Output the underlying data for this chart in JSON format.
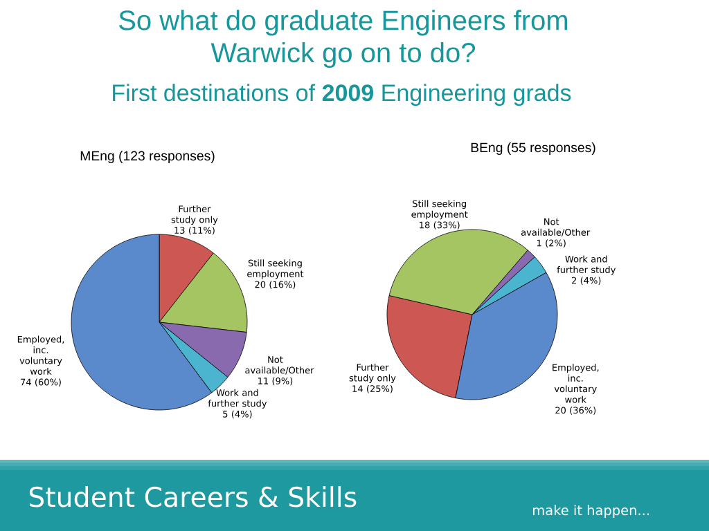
{
  "chart_data": [
    {
      "type": "other",
      "title": "So what do graduate Engineers from Warwick go on to do?",
      "subtitle": "First destinations of **2009** Engineering grads"
    },
    {
      "type": "pie",
      "title": "MEng (123  responses)",
      "categories": [
        "Further study only",
        "Still seeking employment",
        "Not available/Other",
        "Work and further study",
        "Employed, inc. voluntary work"
      ],
      "values": [
        13,
        20,
        11,
        5,
        74
      ],
      "colors": [
        "#cd5753",
        "#a5c562",
        "#8a6aaf",
        "#4bb5d0",
        "#5a8acb"
      ],
      "value_labels": [
        "13 (11%)",
        "20 (16%)",
        "11 (9%)",
        "5 (4%)",
        "74 (60%)"
      ]
    },
    {
      "type": "pie",
      "title": "BEng (55 responses)",
      "categories": [
        "Further study only",
        "Still seeking employment",
        "Not available/Other",
        "Work and further study",
        "Employed, inc. voluntary work"
      ],
      "values": [
        14,
        18,
        1,
        2,
        20
      ],
      "colors": [
        "#cd5753",
        "#a5c562",
        "#8a6aaf",
        "#4bb5d0",
        "#5a8acb"
      ],
      "value_labels": [
        "14 (25%)",
        "18 (33%)",
        "1 (2%)",
        "2 (4%)",
        "20 (36%)"
      ]
    },
    {
      "type": "other",
      "annotations": [
        "Student Careers & Skills",
        "make it happen..."
      ]
    }
  ]
}
